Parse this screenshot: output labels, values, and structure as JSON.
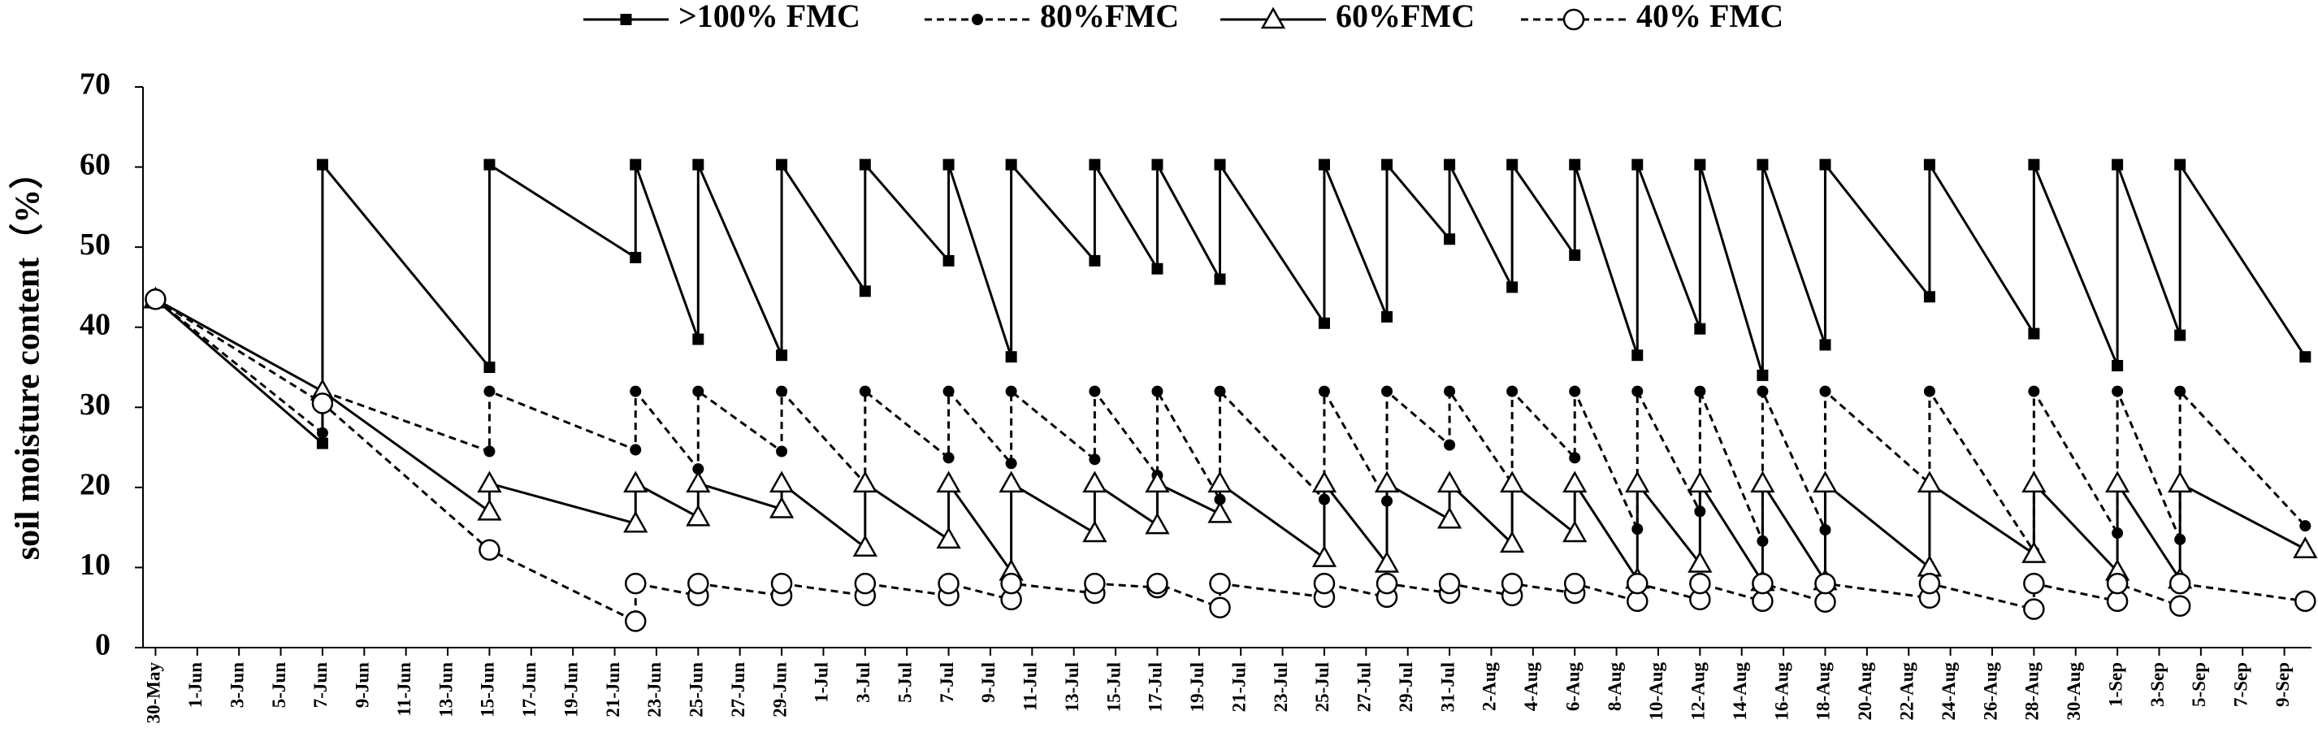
{
  "chart_data": {
    "type": "line",
    "y_label": "soil moisture content（%）",
    "ylim": [
      0,
      70
    ],
    "yticks": [
      0,
      10,
      20,
      30,
      40,
      50,
      60,
      70
    ],
    "xlim": [
      -0.6,
      103.3
    ],
    "xticks": [
      {
        "value": 0,
        "label": "30-May"
      },
      {
        "value": 2,
        "label": "1-Jun"
      },
      {
        "value": 4,
        "label": "3-Jun"
      },
      {
        "value": 6,
        "label": "5-Jun"
      },
      {
        "value": 8,
        "label": "7-Jun"
      },
      {
        "value": 10,
        "label": "9-Jun"
      },
      {
        "value": 12,
        "label": "11-Jun"
      },
      {
        "value": 14,
        "label": "13-Jun"
      },
      {
        "value": 16,
        "label": "15-Jun"
      },
      {
        "value": 18,
        "label": "17-Jun"
      },
      {
        "value": 20,
        "label": "19-Jun"
      },
      {
        "value": 22,
        "label": "21-Jun"
      },
      {
        "value": 24,
        "label": "23-Jun"
      },
      {
        "value": 26,
        "label": "25-Jun"
      },
      {
        "value": 28,
        "label": "27-Jun"
      },
      {
        "value": 30,
        "label": "29-Jun"
      },
      {
        "value": 32,
        "label": "1-Jul"
      },
      {
        "value": 34,
        "label": "3-Jul"
      },
      {
        "value": 36,
        "label": "5-Jul"
      },
      {
        "value": 38,
        "label": "7-Jul"
      },
      {
        "value": 40,
        "label": "9-Jul"
      },
      {
        "value": 42,
        "label": "11-Jul"
      },
      {
        "value": 44,
        "label": "13-Jul"
      },
      {
        "value": 46,
        "label": "15-Jul"
      },
      {
        "value": 48,
        "label": "17-Jul"
      },
      {
        "value": 50,
        "label": "19-Jul"
      },
      {
        "value": 52,
        "label": "21-Jul"
      },
      {
        "value": 54,
        "label": "23-Jul"
      },
      {
        "value": 56,
        "label": "25-Jul"
      },
      {
        "value": 58,
        "label": "27-Jul"
      },
      {
        "value": 60,
        "label": "29-Jul"
      },
      {
        "value": 62,
        "label": "31-Jul"
      },
      {
        "value": 64,
        "label": "2-Aug"
      },
      {
        "value": 66,
        "label": "4-Aug"
      },
      {
        "value": 68,
        "label": "6-Aug"
      },
      {
        "value": 70,
        "label": "8-Aug"
      },
      {
        "value": 72,
        "label": "10-Aug"
      },
      {
        "value": 74,
        "label": "12-Aug"
      },
      {
        "value": 76,
        "label": "14-Aug"
      },
      {
        "value": 78,
        "label": "16-Aug"
      },
      {
        "value": 80,
        "label": "18-Aug"
      },
      {
        "value": 82,
        "label": "20-Aug"
      },
      {
        "value": 84,
        "label": "22-Aug"
      },
      {
        "value": 86,
        "label": "24-Aug"
      },
      {
        "value": 88,
        "label": "26-Aug"
      },
      {
        "value": 90,
        "label": "28-Aug"
      },
      {
        "value": 92,
        "label": "30-Aug"
      },
      {
        "value": 94,
        "label": "1-Sep"
      },
      {
        "value": 96,
        "label": "3-Sep"
      },
      {
        "value": 98,
        "label": "5-Sep"
      },
      {
        "value": 100,
        "label": "7-Sep"
      },
      {
        "value": 102,
        "label": "9-Sep"
      }
    ],
    "legend": "top",
    "series": [
      {
        "name": ">100% FMC",
        "color": "#000000",
        "dash": false,
        "marker": "square",
        "x": [
          0,
          8,
          8,
          16,
          16,
          23,
          23,
          26,
          26,
          30,
          30,
          34,
          34,
          38,
          38,
          41,
          41,
          45,
          45,
          48,
          48,
          51,
          51,
          56,
          56,
          59,
          59,
          62,
          62,
          65,
          65,
          68,
          68,
          71,
          71,
          74,
          74,
          77,
          77,
          80,
          80,
          85,
          85,
          90,
          90,
          94,
          94,
          97,
          97,
          103
        ],
        "values": [
          43.5,
          25.5,
          60.3,
          35,
          60.3,
          48.7,
          60.3,
          38.5,
          60.3,
          36.5,
          60.3,
          44.5,
          60.3,
          48.3,
          60.3,
          36.3,
          60.3,
          48.3,
          60.3,
          47.3,
          60.3,
          46,
          60.3,
          40.5,
          60.3,
          41.3,
          60.3,
          51,
          60.3,
          45,
          60.3,
          49,
          60.3,
          36.5,
          60.3,
          39.8,
          60.3,
          34,
          60.3,
          37.8,
          60.3,
          43.8,
          60.3,
          39.2,
          60.3,
          35.2,
          60.3,
          39,
          60.3,
          36.3
        ]
      },
      {
        "name": "80%FMC",
        "color": "#000000",
        "dash": true,
        "marker": "dot",
        "x": [
          0,
          8,
          8,
          16,
          16,
          23,
          23,
          26,
          26,
          30,
          30,
          34,
          34,
          38,
          38,
          41,
          41,
          45,
          45,
          48,
          48,
          51,
          51,
          56,
          56,
          59,
          59,
          62,
          62,
          65,
          65,
          68,
          68,
          71,
          71,
          74,
          74,
          77,
          77,
          80,
          80,
          85,
          85,
          90,
          90,
          94,
          94,
          97,
          97,
          103
        ],
        "values": [
          43.5,
          26.8,
          32,
          24.5,
          32,
          24.7,
          32,
          22.3,
          32,
          24.5,
          32,
          20.5,
          32,
          23.7,
          32,
          23,
          32,
          23.5,
          32,
          21.5,
          32,
          18.5,
          32,
          18.5,
          32,
          18.3,
          32,
          25.3,
          32,
          20.5,
          32,
          23.7,
          32,
          14.8,
          32,
          17,
          32,
          13.3,
          32,
          14.7,
          32,
          20.5,
          32,
          12,
          32,
          14.3,
          32,
          13.5,
          32,
          15.2
        ]
      },
      {
        "name": "60%FMC",
        "color": "#000000",
        "dash": false,
        "marker": "triangle",
        "x": [
          0,
          8,
          16,
          16,
          23,
          23,
          26,
          26,
          30,
          30,
          34,
          34,
          38,
          38,
          41,
          41,
          45,
          45,
          48,
          48,
          51,
          51,
          56,
          56,
          59,
          59,
          62,
          62,
          65,
          65,
          68,
          68,
          71,
          71,
          74,
          74,
          77,
          77,
          80,
          80,
          85,
          85,
          90,
          90,
          94,
          94,
          97,
          97,
          103
        ],
        "values": [
          43.5,
          32,
          17,
          20.5,
          15.5,
          20.5,
          16.3,
          20.5,
          17.3,
          20.5,
          12.5,
          20.5,
          13.5,
          20.5,
          9.5,
          20.5,
          14.3,
          20.5,
          15.3,
          20.5,
          16.7,
          20.5,
          11.2,
          20.5,
          10.5,
          20.5,
          16,
          20.5,
          13,
          20.5,
          14.3,
          20.5,
          8.5,
          20.5,
          10.5,
          20.5,
          8.2,
          20.5,
          8.3,
          20.5,
          10,
          20.5,
          11.7,
          20.5,
          9.5,
          20.5,
          8.5,
          20.5,
          12.3
        ]
      },
      {
        "name": "40% FMC",
        "color": "#000000",
        "dash": true,
        "marker": "circle",
        "x": [
          0,
          8,
          16,
          23,
          23,
          26,
          26,
          30,
          30,
          34,
          34,
          38,
          38,
          41,
          41,
          45,
          45,
          48,
          48,
          51,
          51,
          56,
          56,
          59,
          59,
          62,
          62,
          65,
          65,
          68,
          68,
          71,
          71,
          74,
          74,
          77,
          77,
          80,
          80,
          85,
          85,
          90,
          90,
          94,
          94,
          97,
          97,
          103
        ],
        "values": [
          43.5,
          30.5,
          12.2,
          3.3,
          8,
          6.5,
          8,
          6.5,
          8,
          6.5,
          8,
          6.5,
          8,
          6,
          8,
          6.8,
          8,
          7.5,
          8,
          5,
          8,
          6.3,
          8,
          6.3,
          8,
          6.8,
          8,
          6.5,
          8,
          6.8,
          8,
          5.8,
          8,
          6,
          8,
          5.8,
          8,
          5.7,
          8,
          6.2,
          8,
          4.8,
          8,
          5.8,
          8,
          5.2,
          8,
          5.8
        ]
      }
    ]
  }
}
